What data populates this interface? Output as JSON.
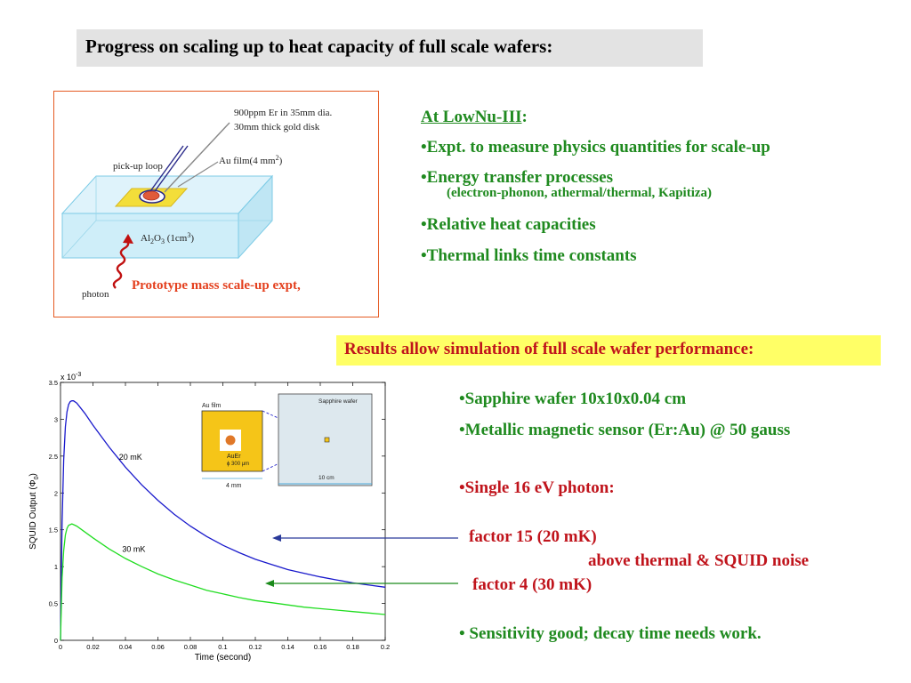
{
  "title": "Progress on scaling up to heat capacity of full scale wafers:",
  "diagram": {
    "label_er": "900ppm Er in 35mm dia.",
    "label_gold": "30mm thick gold disk",
    "label_pickup": "pick-up loop",
    "label_aufilm": "Au film(4 mm",
    "label_aufilm_sup": "2",
    "label_aufilm_end": ")",
    "label_al2o3_a": "Al",
    "label_al2o3_sub1": "2",
    "label_al2o3_b": "O",
    "label_al2o3_sub2": "3",
    "label_al2o3_c": " (1cm",
    "label_al2o3_sup": "3",
    "label_al2o3_d": ")",
    "label_photon": "photon",
    "caption": "Prototype mass scale-up expt,"
  },
  "lownu": {
    "heading": "At LowNu-III",
    "colon": ":",
    "items": [
      "•Expt. to measure physics quantities for scale-up",
      "•Energy transfer processes",
      "•Relative heat capacities",
      "•Thermal links time constants"
    ],
    "sub_item": "(electron-phonon, athermal/thermal, Kapitiza)"
  },
  "results_banner": "Results allow simulation of full scale wafer performance:",
  "specs": {
    "wafer": "•Sapphire wafer 10x10x0.04 cm",
    "sensor": "•Metallic magnetic sensor (Er:Au) @ 50 gauss",
    "photon": "•Single 16 eV photon:",
    "factor_20": "factor 15 (20 mK)",
    "above_noise": "above thermal & SQUID noise",
    "factor_30": "factor  4  (30 mK)",
    "sensitivity": "• Sensitivity good; decay time needs work."
  },
  "inset": {
    "au_film": "Au film",
    "auer": "AuEr",
    "phi": "ϕ 300 μm",
    "dim_4mm": "4 mm",
    "sapphire": "Sapphire wafer",
    "dim_10cm": "10 cm"
  },
  "chart_data": {
    "type": "line",
    "exponent_label": "x 10",
    "exponent_sup": "-3",
    "xlabel": "Time (second)",
    "ylabel": "SQUID Output (Φ",
    "ylabel_sub": "0",
    "ylabel_end": ")",
    "xlim": [
      0,
      0.2
    ],
    "ylim": [
      0,
      3.5
    ],
    "xticks": [
      0,
      0.02,
      0.04,
      0.06,
      0.08,
      0.1,
      0.12,
      0.14,
      0.16,
      0.18,
      0.2
    ],
    "xtick_labels": [
      "0",
      "0.02",
      "0.04",
      "0.06",
      "0.08",
      "0.1",
      "0.12",
      "0.14",
      "0.16",
      "0.18",
      "0.2"
    ],
    "yticks": [
      0,
      0.5,
      1,
      1.5,
      2,
      2.5,
      3,
      3.5
    ],
    "ytick_labels": [
      "0",
      "0.5",
      "1",
      "1.5",
      "2",
      "2.5",
      "3",
      "3.5"
    ],
    "series": [
      {
        "name": "20 mK",
        "color": "#1a1acc",
        "x": [
          0,
          0.001,
          0.002,
          0.003,
          0.004,
          0.005,
          0.006,
          0.007,
          0.008,
          0.01,
          0.015,
          0.02,
          0.03,
          0.04,
          0.05,
          0.06,
          0.07,
          0.08,
          0.09,
          0.1,
          0.11,
          0.12,
          0.13,
          0.14,
          0.15,
          0.16,
          0.17,
          0.18,
          0.19,
          0.2
        ],
        "y": [
          0,
          1.6,
          2.45,
          2.9,
          3.1,
          3.2,
          3.24,
          3.25,
          3.25,
          3.22,
          3.08,
          2.92,
          2.62,
          2.35,
          2.11,
          1.9,
          1.71,
          1.55,
          1.41,
          1.29,
          1.19,
          1.1,
          1.03,
          0.96,
          0.91,
          0.86,
          0.82,
          0.78,
          0.75,
          0.72
        ]
      },
      {
        "name": "30 mK",
        "color": "#22dd22",
        "x": [
          0,
          0.001,
          0.002,
          0.003,
          0.004,
          0.005,
          0.006,
          0.007,
          0.008,
          0.01,
          0.015,
          0.02,
          0.03,
          0.04,
          0.05,
          0.06,
          0.07,
          0.08,
          0.09,
          0.1,
          0.11,
          0.12,
          0.13,
          0.14,
          0.15,
          0.16,
          0.17,
          0.18,
          0.19,
          0.2
        ],
        "y": [
          0,
          0.85,
          1.22,
          1.43,
          1.52,
          1.56,
          1.57,
          1.58,
          1.57,
          1.55,
          1.47,
          1.39,
          1.24,
          1.11,
          1.0,
          0.9,
          0.82,
          0.75,
          0.68,
          0.63,
          0.58,
          0.54,
          0.51,
          0.48,
          0.45,
          0.43,
          0.41,
          0.39,
          0.37,
          0.35
        ]
      }
    ]
  },
  "colors": {
    "accent_red": "#c0141c",
    "accent_green": "#1f8a1f",
    "banner_yellow": "#ffff66",
    "box_border": "#e55a22"
  }
}
